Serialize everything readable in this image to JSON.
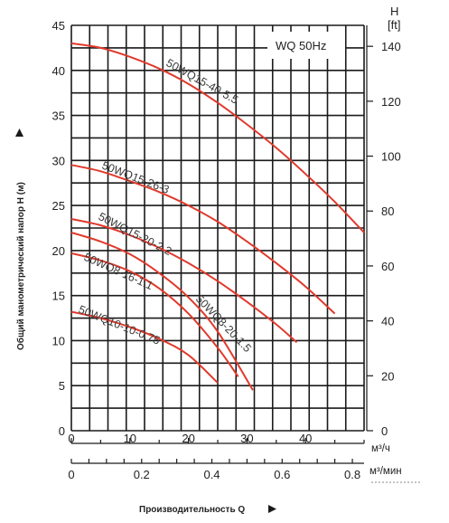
{
  "chart_data": {
    "type": "line",
    "ylabel": "Общий манометрический напор H (м)",
    "xlabel": "Производительность Q",
    "ylim": [
      0,
      45
    ],
    "y_ticks": [
      0,
      5,
      10,
      15,
      20,
      25,
      30,
      35,
      40,
      45
    ],
    "right_axis": {
      "title_top": "H",
      "title_unit": "[ft]",
      "ticks": [
        0,
        20,
        40,
        60,
        80,
        100,
        120,
        140
      ]
    },
    "x_axis_m3h": {
      "unit": "м³/ч",
      "ticks": [
        0,
        10,
        20,
        30,
        40
      ],
      "range": [
        0,
        50
      ]
    },
    "x_axis_m3min": {
      "unit": "м³/мин",
      "ticks": [
        "0",
        "0.2",
        "0.4",
        "0.6",
        "0.8"
      ]
    },
    "legend_box": "WQ 50Hz",
    "grid": true,
    "series": [
      {
        "name": "50WQ15-40-5.5",
        "x": [
          0,
          5,
          10,
          15,
          20,
          25,
          30,
          35,
          40,
          45,
          50
        ],
        "y": [
          43,
          42.5,
          41.5,
          40.2,
          38.5,
          36.4,
          34,
          31.4,
          28.5,
          25.4,
          22
        ]
      },
      {
        "name": "50WQ15-26-3",
        "x": [
          0,
          5,
          10,
          15,
          20,
          25,
          30,
          35,
          40,
          45
        ],
        "y": [
          29.5,
          28.8,
          27.7,
          26.5,
          25,
          23.2,
          21,
          18.6,
          16,
          13
        ]
      },
      {
        "name": "50WQ15-20-2.2",
        "x": [
          0,
          5,
          10,
          15,
          20,
          25,
          30,
          35,
          38.5
        ],
        "y": [
          23.5,
          22.8,
          21.7,
          20.3,
          18.6,
          16.6,
          14.3,
          11.8,
          9.8
        ]
      },
      {
        "name": "50WQ8-20-1.5",
        "x": [
          0,
          5,
          10,
          15,
          20,
          25,
          31
        ],
        "y": [
          22,
          21,
          19.6,
          17.5,
          14.8,
          11,
          4.5
        ]
      },
      {
        "name": "50WQ8-16-1.1",
        "x": [
          0,
          5,
          10,
          15,
          20,
          25,
          28.5
        ],
        "y": [
          19.7,
          18.9,
          17.7,
          15.8,
          13,
          9.2,
          6
        ]
      },
      {
        "name": "50WQ10-10-0.75",
        "x": [
          0,
          5,
          10,
          15,
          20,
          25
        ],
        "y": [
          13.2,
          12.5,
          11.5,
          10.2,
          8.4,
          5.3
        ]
      }
    ]
  }
}
